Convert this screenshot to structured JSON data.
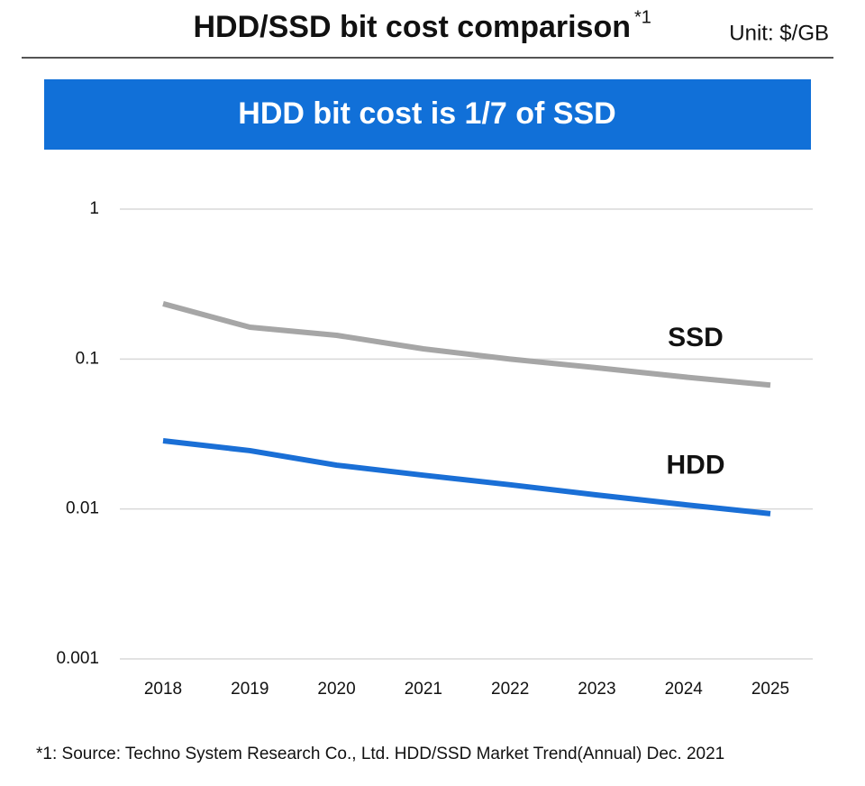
{
  "chart_data": {
    "type": "line",
    "title": "HDD/SSD bit cost comparison",
    "title_note": "*1",
    "unit": "Unit: $/GB",
    "subtitle": "HDD bit cost is 1/7 of SSD",
    "footnote": "*1: Source: Techno System Research Co., Ltd. HDD/SSD Market Trend(Annual) Dec. 2021",
    "categories": [
      "2018",
      "2019",
      "2020",
      "2021",
      "2022",
      "2023",
      "2024",
      "2025"
    ],
    "series": [
      {
        "name": "SSD",
        "color": "#a6a6a6",
        "values": [
          0.234,
          0.163,
          0.144,
          0.117,
          0.1,
          0.0875,
          0.076,
          0.067
        ]
      },
      {
        "name": "HDD",
        "color": "#1a6fd6",
        "values": [
          0.0285,
          0.0245,
          0.0196,
          0.0168,
          0.0145,
          0.0124,
          0.0107,
          0.0093
        ]
      }
    ],
    "ylim": [
      0.001,
      1
    ],
    "yticks": [
      1,
      0.1,
      0.01,
      0.001
    ],
    "log_scale": true,
    "grid": true,
    "banner_color": "#1170d8"
  }
}
